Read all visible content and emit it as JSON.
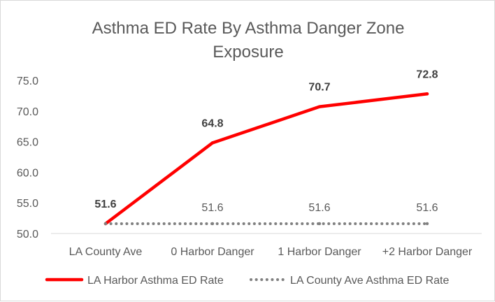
{
  "chart_data": {
    "type": "line",
    "title_lines": [
      "Asthma ED Rate By Asthma Danger Zone",
      "Exposure"
    ],
    "categories": [
      "LA County Ave",
      "0 Harbor Danger",
      "1 Harbor Danger",
      "+2 Harbor Danger"
    ],
    "y_ticks": [
      "50.0",
      "55.0",
      "60.0",
      "65.0",
      "70.0",
      "75.0"
    ],
    "ylim": [
      50,
      75
    ],
    "grid": false,
    "legend_position": "bottom",
    "series": [
      {
        "name": "LA Harbor Asthma ED Rate",
        "values": [
          51.6,
          64.8,
          70.7,
          72.8
        ],
        "labels": [
          "51.6",
          "64.8",
          "70.7",
          "72.8"
        ],
        "color": "#ff0000",
        "line_style": "solid",
        "label_style": "bold"
      },
      {
        "name": "LA County Ave Asthma ED Rate",
        "values": [
          51.6,
          51.6,
          51.6,
          51.6
        ],
        "labels": [
          "51.6",
          "51.6",
          "51.6",
          "51.6"
        ],
        "color": "#808080",
        "line_style": "dotted",
        "label_style": "normal"
      }
    ]
  }
}
